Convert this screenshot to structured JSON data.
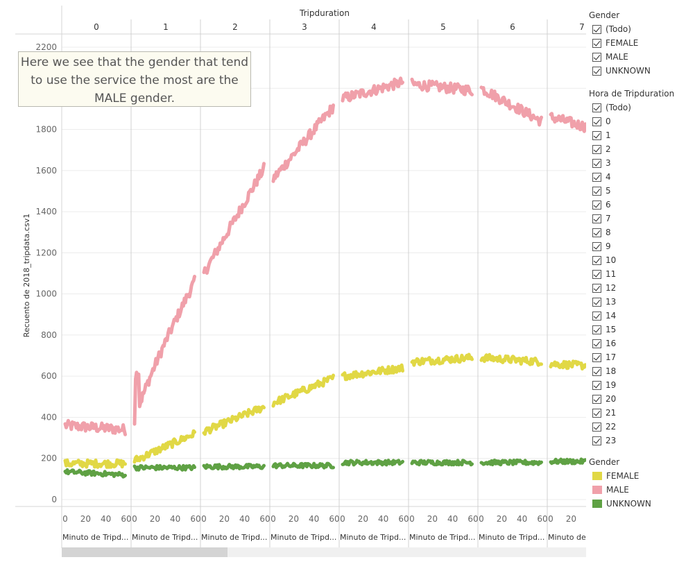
{
  "chart_data": {
    "type": "line",
    "title": "Tripduration",
    "ylabel": "Recuento de 2018_tripdata.csv1",
    "xlabel_each_panel": "Minuto de Tripd...",
    "xlabel_last_panel": "Minuto de",
    "ylim": [
      0,
      2200
    ],
    "yticks": [
      0,
      200,
      400,
      600,
      800,
      1000,
      1200,
      1400,
      1600,
      1800,
      2000,
      2200
    ],
    "panels": [
      "0",
      "1",
      "2",
      "3",
      "4",
      "5",
      "6",
      "7"
    ],
    "xticks": [
      0,
      20,
      40,
      60
    ],
    "x_range": [
      0,
      59
    ],
    "series": [
      {
        "name": "MALE",
        "color": "#f0a0aa",
        "start": [
          360,
          380,
          1100,
          1560,
          1950,
          2020,
          2000,
          1860
        ],
        "end": [
          340,
          1060,
          1610,
          1910,
          2030,
          1990,
          1840,
          1780
        ],
        "shape": [
          "flat",
          "sqrt",
          "linear",
          "linear",
          "flat",
          "flat",
          "flat",
          "flat"
        ],
        "noise": 25
      },
      {
        "name": "FEMALE",
        "color": "#e1d845",
        "start": [
          175,
          190,
          330,
          470,
          600,
          670,
          690,
          660
        ],
        "end": [
          175,
          320,
          450,
          590,
          640,
          690,
          670,
          645
        ],
        "shape": [
          "flat",
          "linear",
          "linear",
          "linear",
          "flat",
          "flat",
          "flat",
          "flat"
        ],
        "noise": 18
      },
      {
        "name": "UNKNOWN",
        "color": "#5fa144",
        "start": [
          135,
          155,
          160,
          165,
          180,
          180,
          180,
          185
        ],
        "end": [
          120,
          155,
          160,
          165,
          180,
          180,
          180,
          185
        ],
        "shape": [
          "flat",
          "flat",
          "flat",
          "flat",
          "flat",
          "flat",
          "flat",
          "flat"
        ],
        "noise": 11
      }
    ],
    "annotation": "Here we see that the gender that tend to use the service the most are the MALE gender.",
    "legend_position": "right"
  },
  "filters": {
    "gender": {
      "title": "Gender",
      "options": [
        "(Todo)",
        "FEMALE",
        "MALE",
        "UNKNOWN"
      ]
    },
    "hour": {
      "title": "Hora de Tripduration",
      "options": [
        "(Todo)",
        "0",
        "1",
        "2",
        "3",
        "4",
        "5",
        "6",
        "7",
        "8",
        "9",
        "10",
        "11",
        "12",
        "13",
        "14",
        "15",
        "16",
        "17",
        "18",
        "19",
        "20",
        "21",
        "22",
        "23"
      ]
    }
  },
  "legend": {
    "title": "Gender",
    "items": [
      {
        "label": "FEMALE",
        "color": "#e1d845"
      },
      {
        "label": "MALE",
        "color": "#f0a0aa"
      },
      {
        "label": "UNKNOWN",
        "color": "#5fa144"
      }
    ]
  }
}
